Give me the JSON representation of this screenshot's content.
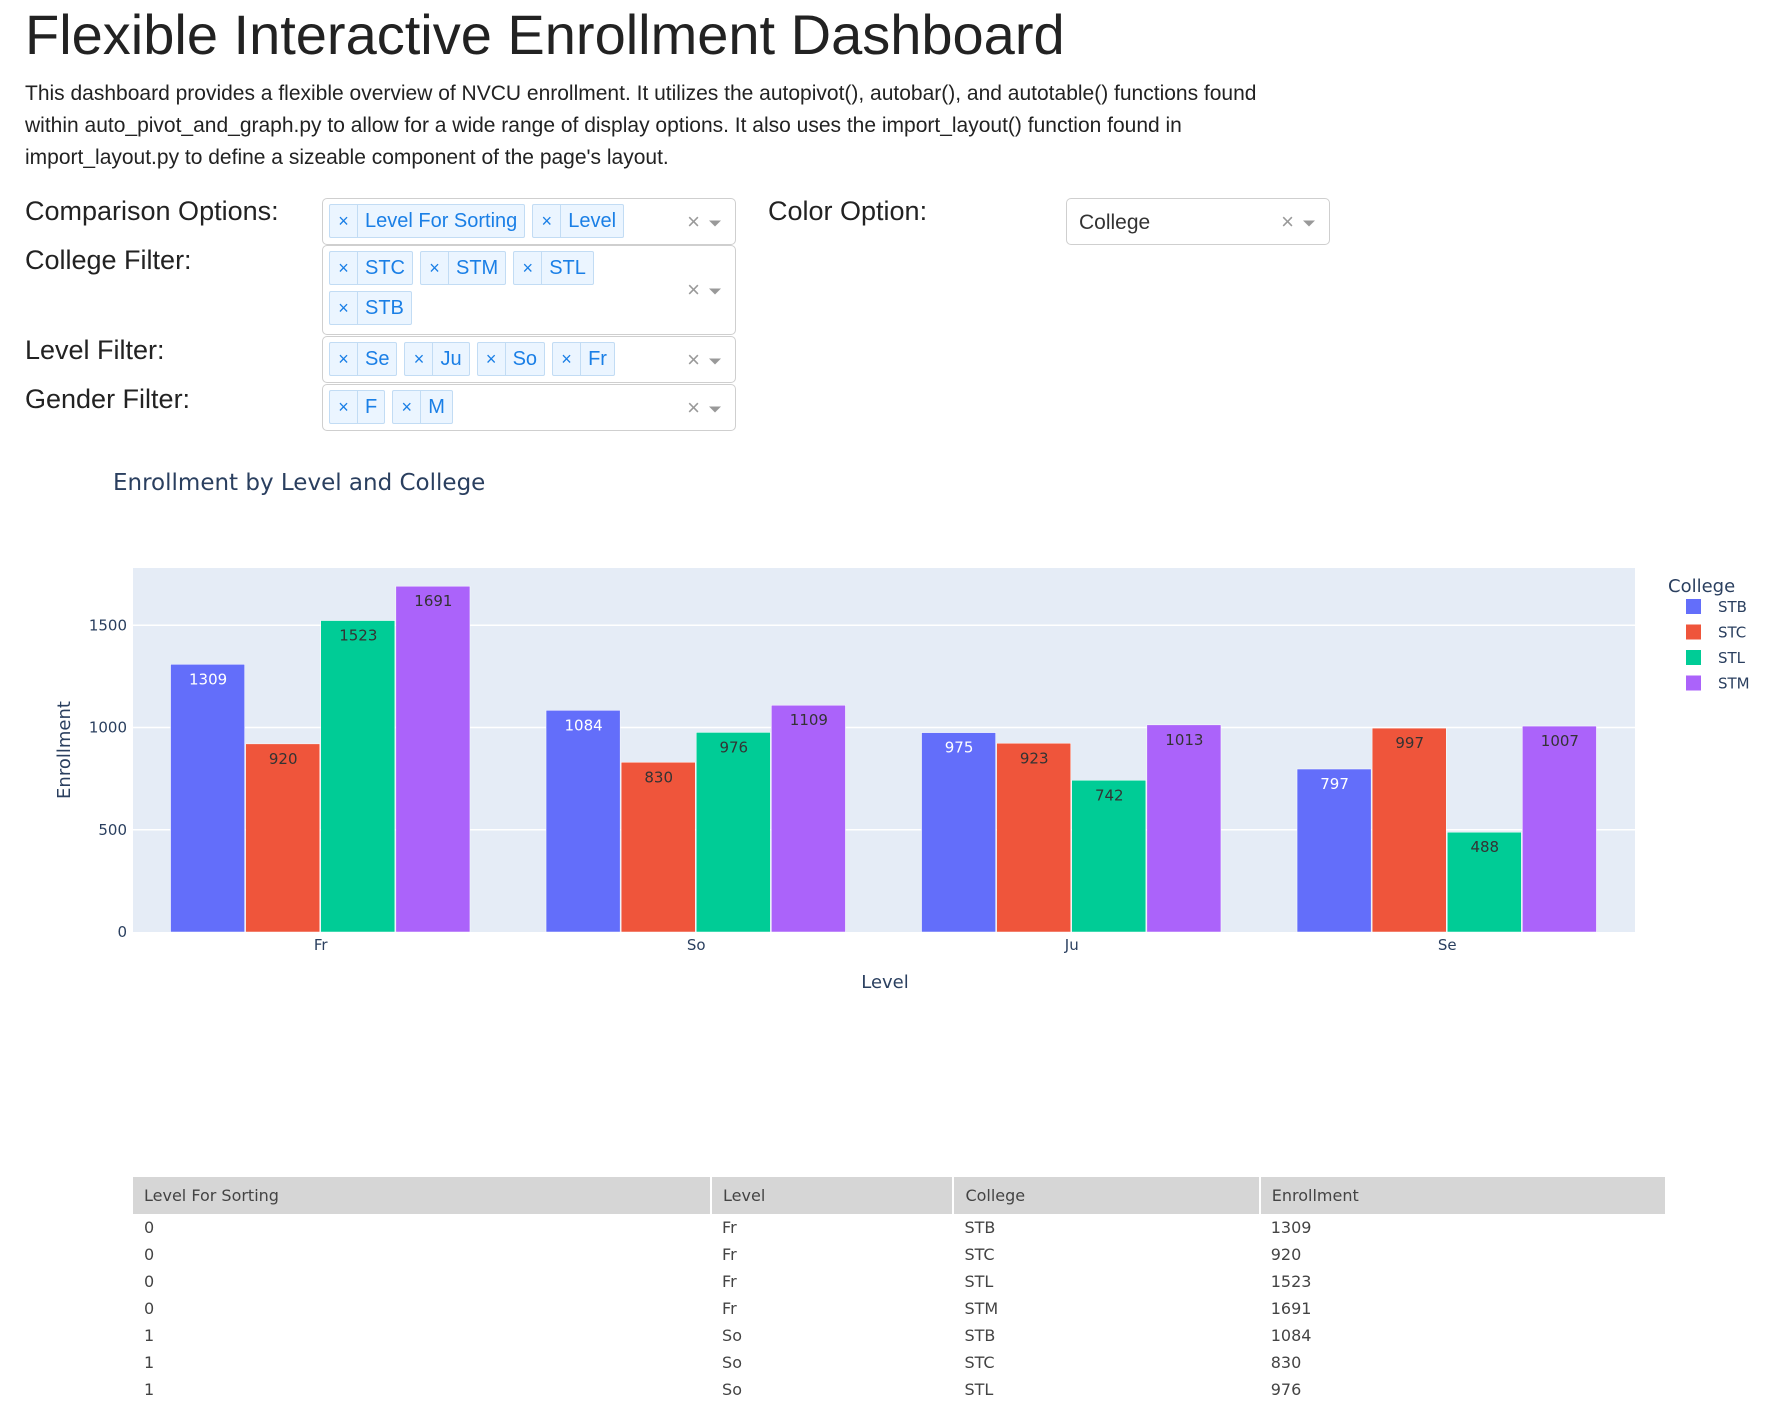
{
  "page": {
    "title": "Flexible Interactive Enrollment Dashboard",
    "description": "This dashboard provides a flexible overview of NVCU enrollment. It utilizes the autopivot(), autobar(), and autotable() functions found within auto_pivot_and_graph.py to allow for a wide range of display options. It also uses the import_layout() function found in import_layout.py to define a sizeable component of the page's layout."
  },
  "controls": {
    "comparison": {
      "label": "Comparison Options:",
      "chips": [
        "Level For Sorting",
        "Level"
      ]
    },
    "color": {
      "label": "Color Option:",
      "value": "College"
    },
    "college": {
      "label": "College Filter:",
      "chips": [
        "STC",
        "STM",
        "STL",
        "STB"
      ]
    },
    "level": {
      "label": "Level Filter:",
      "chips": [
        "Se",
        "Ju",
        "So",
        "Fr"
      ]
    },
    "gender": {
      "label": "Gender Filter:",
      "chips": [
        "F",
        "M"
      ]
    },
    "clear_glyph": "×",
    "remove_glyph": "×"
  },
  "chart_data": {
    "type": "bar",
    "title": "Enrollment by Level and College",
    "xlabel": "Level",
    "ylabel": "Enrollment",
    "categories": [
      "Fr",
      "So",
      "Ju",
      "Se"
    ],
    "ylim": [
      0,
      1780
    ],
    "yticks": [
      0,
      500,
      1000,
      1500
    ],
    "grid": true,
    "legend_title": "College",
    "legend_position": "right",
    "series": [
      {
        "name": "STB",
        "color": "#636efa",
        "values": [
          1309,
          1084,
          975,
          797
        ]
      },
      {
        "name": "STC",
        "color": "#ef553b",
        "values": [
          920,
          830,
          923,
          997
        ]
      },
      {
        "name": "STL",
        "color": "#00cc96",
        "values": [
          1523,
          976,
          742,
          488
        ]
      },
      {
        "name": "STM",
        "color": "#ab63fa",
        "values": [
          1691,
          1109,
          1013,
          1007
        ]
      }
    ]
  },
  "table": {
    "columns": [
      "Level For Sorting",
      "Level",
      "College",
      "Enrollment"
    ],
    "rows": [
      [
        "0",
        "Fr",
        "STB",
        "1309"
      ],
      [
        "0",
        "Fr",
        "STC",
        "920"
      ],
      [
        "0",
        "Fr",
        "STL",
        "1523"
      ],
      [
        "0",
        "Fr",
        "STM",
        "1691"
      ],
      [
        "1",
        "So",
        "STB",
        "1084"
      ],
      [
        "1",
        "So",
        "STC",
        "830"
      ],
      [
        "1",
        "So",
        "STL",
        "976"
      ]
    ]
  },
  "colors": {
    "plot_bg": "#e5ecf6",
    "chip_text": "#1a7fe6",
    "chip_bg": "#ebf5ff",
    "axis_text": "#2a3f5f"
  }
}
